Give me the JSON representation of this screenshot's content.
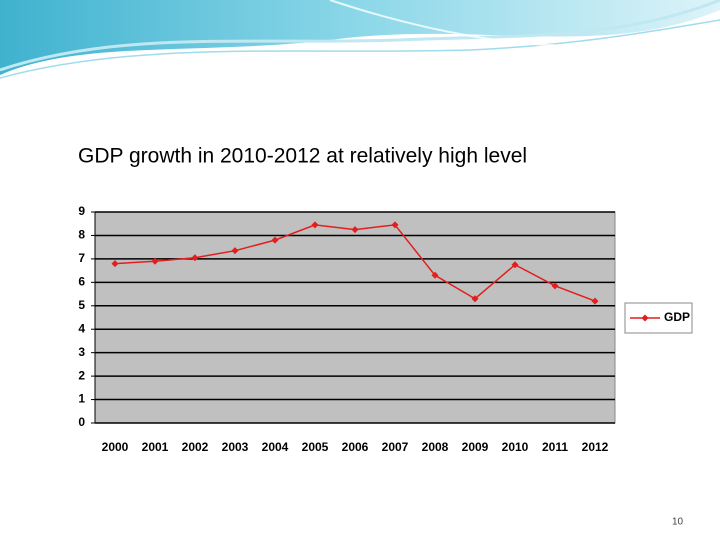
{
  "slide_title": "GDP growth in 2010-2012 at relatively high level",
  "page_number": "10",
  "chart_data": {
    "type": "line",
    "categories": [
      "2000",
      "2001",
      "2002",
      "2003",
      "2004",
      "2005",
      "2006",
      "2007",
      "2008",
      "2009",
      "2010",
      "2011",
      "2012"
    ],
    "series": [
      {
        "name": "GDP",
        "color": "#e31e1e",
        "values": [
          6.8,
          6.9,
          7.05,
          7.35,
          7.8,
          8.45,
          8.25,
          8.45,
          6.3,
          5.3,
          6.75,
          5.85,
          5.2
        ]
      }
    ],
    "ylim": [
      0,
      9
    ],
    "yticks": [
      0,
      1,
      2,
      3,
      4,
      5,
      6,
      7,
      8,
      9
    ],
    "grid": true,
    "legend": "right",
    "plot_background": "#c0c0c0"
  }
}
